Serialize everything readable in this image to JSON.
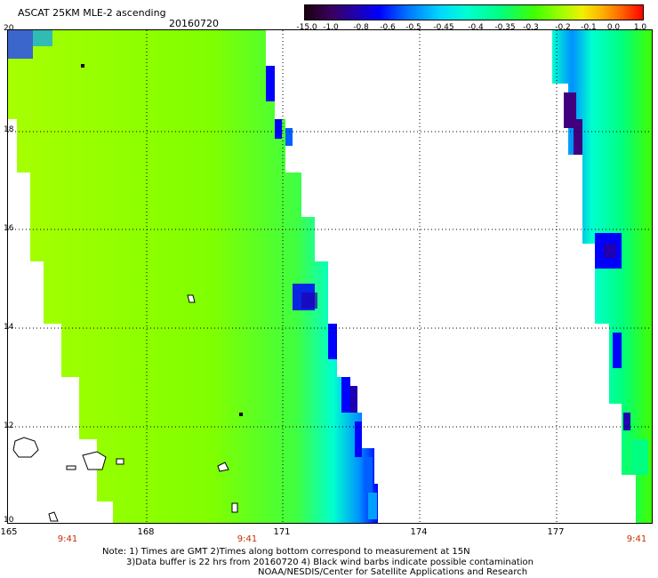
{
  "header": {
    "title": "ASCAT 25KM MLE-2 ascending",
    "date": "20160720"
  },
  "colorbar": {
    "labels": [
      "-15.0",
      "-1.0",
      "-0.8",
      "-0.6",
      "-0.5",
      "-0.45",
      "-0.4",
      "-0.35",
      "-0.3",
      "-0.2",
      "-0.1",
      "0.0",
      "1.0"
    ]
  },
  "axes": {
    "y_ticks": [
      "20",
      "18",
      "16",
      "14",
      "12",
      "10"
    ],
    "x_ticks": [
      "165",
      "168",
      "171",
      "174",
      "177"
    ],
    "time_labels": [
      "9:41",
      "9:41",
      "9:41"
    ]
  },
  "notes": {
    "line1": "Note: 1) Times are GMT 2)Times along bottom correspond to measurement at 15N",
    "line2": "3)Data buffer is 22 hrs from 20160720 4) Black wind barbs indicate possible contamination",
    "line3": "NOAA/NESDIS/Center for Satellite Applications and Research"
  },
  "colors": {
    "swath_main": "#80ff00",
    "swath_edge": "#00ffd0",
    "swath_low": "#0000ff",
    "swath_min": "#400080",
    "grid": "#000000",
    "time_label": "#c03000"
  }
}
